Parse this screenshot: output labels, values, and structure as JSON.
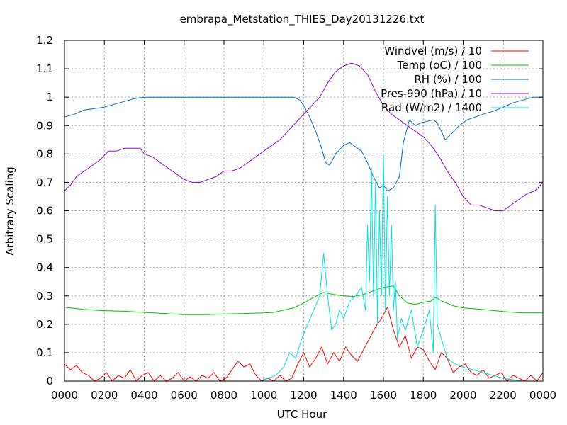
{
  "chart_data": {
    "type": "line",
    "title": "embrapa_Metstation_THIES_Day20131226.txt",
    "xlabel": "UTC Hour",
    "ylabel": "Arbitrary Scaling",
    "xlim": [
      0,
      24
    ],
    "ylim": [
      0,
      1.2
    ],
    "grid": true,
    "legend_position": "top-right",
    "x_tick_labels": [
      "0000",
      "0200",
      "0400",
      "0600",
      "0800",
      "1000",
      "1200",
      "1400",
      "1600",
      "1800",
      "2000",
      "2200",
      "0000"
    ],
    "y_tick_labels": [
      "0",
      "0.1",
      "0.2",
      "0.3",
      "0.4",
      "0.5",
      "0.6",
      "0.7",
      "0.8",
      "0.9",
      "1",
      "1.1",
      "1.2"
    ],
    "series": [
      {
        "name": "Windvel (m/s) / 10",
        "color": "#ff0000",
        "x": [
          0,
          0.3,
          0.6,
          0.9,
          1.2,
          1.5,
          1.8,
          2.1,
          2.4,
          2.7,
          3.0,
          3.3,
          3.6,
          3.9,
          4.2,
          4.5,
          4.8,
          5.1,
          5.4,
          5.7,
          6.0,
          6.3,
          6.6,
          6.9,
          7.2,
          7.5,
          7.8,
          8.1,
          8.4,
          8.7,
          9.0,
          9.3,
          9.6,
          9.9,
          10.2,
          10.5,
          10.8,
          11.1,
          11.4,
          11.7,
          12.0,
          12.3,
          12.6,
          12.9,
          13.2,
          13.5,
          13.8,
          14.1,
          14.4,
          14.7,
          15.0,
          15.3,
          15.6,
          15.9,
          16.2,
          16.5,
          16.8,
          17.1,
          17.4,
          17.7,
          18.0,
          18.3,
          18.6,
          18.9,
          19.2,
          19.5,
          19.8,
          20.1,
          20.4,
          20.7,
          21.0,
          21.3,
          21.6,
          21.9,
          22.2,
          22.5,
          22.8,
          23.1,
          23.4,
          23.7,
          24.0
        ],
        "y": [
          0.06,
          0.04,
          0.055,
          0.03,
          0.02,
          0.0,
          0.01,
          0.03,
          0.0,
          0.02,
          0.01,
          0.04,
          0.0,
          0.02,
          0.03,
          0.0,
          0.02,
          0.0,
          0.01,
          0.03,
          0.0,
          0.015,
          0.0,
          0.02,
          0.01,
          0.03,
          0.0,
          0.01,
          0.04,
          0.07,
          0.05,
          0.06,
          0.02,
          0.0,
          0.01,
          0.0,
          0.02,
          0.0,
          0.01,
          0.06,
          0.1,
          0.05,
          0.08,
          0.12,
          0.06,
          0.1,
          0.07,
          0.12,
          0.09,
          0.07,
          0.11,
          0.15,
          0.19,
          0.22,
          0.26,
          0.18,
          0.12,
          0.16,
          0.08,
          0.12,
          0.11,
          0.07,
          0.04,
          0.1,
          0.08,
          0.03,
          0.05,
          0.06,
          0.03,
          0.02,
          0.04,
          0.01,
          0.02,
          0.03,
          0.0,
          0.02,
          0.01,
          0.0,
          0.02,
          0.0,
          0.03
        ]
      },
      {
        "name": "Temp (oC) / 100",
        "color": "#00c000",
        "x": [
          0,
          1,
          2,
          3,
          4,
          5,
          6,
          7,
          8,
          9,
          10,
          10.5,
          11,
          11.5,
          12,
          12.5,
          13,
          13.5,
          14,
          14.5,
          15,
          15.5,
          16,
          16.5,
          16.8,
          17.2,
          17.6,
          18,
          18.4,
          18.6,
          19,
          19.5,
          20,
          21,
          22,
          23,
          24
        ],
        "y": [
          0.26,
          0.252,
          0.248,
          0.246,
          0.242,
          0.238,
          0.234,
          0.234,
          0.236,
          0.238,
          0.24,
          0.242,
          0.25,
          0.258,
          0.275,
          0.295,
          0.312,
          0.305,
          0.3,
          0.298,
          0.305,
          0.318,
          0.33,
          0.335,
          0.3,
          0.275,
          0.27,
          0.278,
          0.282,
          0.295,
          0.28,
          0.265,
          0.258,
          0.252,
          0.245,
          0.24,
          0.24
        ]
      },
      {
        "name": "RH (%) / 100",
        "color": "#0066cc",
        "x": [
          0,
          0.5,
          1,
          1.5,
          2,
          2.5,
          3,
          3.5,
          4,
          5,
          6,
          7,
          8,
          9,
          10,
          11,
          11.5,
          11.8,
          12,
          12.3,
          12.6,
          12.9,
          13.1,
          13.3,
          13.6,
          14,
          14.3,
          14.6,
          14.9,
          15.2,
          15.5,
          15.8,
          16,
          16.2,
          16.5,
          16.8,
          17,
          17.3,
          17.6,
          17.9,
          18.2,
          18.5,
          18.7,
          18.9,
          19.1,
          19.4,
          19.8,
          20.2,
          20.6,
          21,
          21.5,
          22,
          22.5,
          23,
          23.5,
          24
        ],
        "y": [
          0.93,
          0.94,
          0.955,
          0.96,
          0.965,
          0.975,
          0.985,
          0.995,
          1.0,
          1.0,
          1.0,
          1.0,
          1.0,
          1.0,
          1.0,
          1.0,
          1.0,
          0.99,
          0.97,
          0.93,
          0.88,
          0.82,
          0.77,
          0.76,
          0.8,
          0.83,
          0.84,
          0.825,
          0.81,
          0.77,
          0.72,
          0.68,
          0.69,
          0.67,
          0.68,
          0.72,
          0.84,
          0.92,
          0.9,
          0.91,
          0.915,
          0.92,
          0.91,
          0.88,
          0.85,
          0.87,
          0.9,
          0.92,
          0.93,
          0.94,
          0.95,
          0.965,
          0.98,
          0.99,
          1.0,
          1.0
        ]
      },
      {
        "name": "Pres-990 (hPa) / 10",
        "color": "#9400d3",
        "x": [
          0,
          0.3,
          0.6,
          1,
          1.4,
          1.8,
          2.2,
          2.6,
          3,
          3.4,
          3.8,
          4,
          4.4,
          4.8,
          5.2,
          5.6,
          6,
          6.4,
          6.8,
          7.2,
          7.6,
          8,
          8.4,
          8.8,
          9.2,
          9.6,
          10,
          10.4,
          10.8,
          11.2,
          11.6,
          12,
          12.4,
          12.8,
          13.2,
          13.6,
          14,
          14.4,
          14.8,
          15.2,
          15.6,
          16,
          16.4,
          16.8,
          17.2,
          17.6,
          18,
          18.4,
          18.8,
          19.2,
          19.6,
          20,
          20.4,
          20.8,
          21.2,
          21.6,
          22,
          22.4,
          22.8,
          23.2,
          23.6,
          24
        ],
        "y": [
          0.67,
          0.69,
          0.72,
          0.74,
          0.76,
          0.78,
          0.81,
          0.81,
          0.82,
          0.82,
          0.82,
          0.8,
          0.79,
          0.77,
          0.75,
          0.73,
          0.71,
          0.7,
          0.7,
          0.71,
          0.72,
          0.74,
          0.74,
          0.75,
          0.77,
          0.79,
          0.81,
          0.83,
          0.85,
          0.88,
          0.91,
          0.94,
          0.97,
          1.0,
          1.05,
          1.09,
          1.11,
          1.12,
          1.11,
          1.08,
          1.02,
          0.97,
          0.94,
          0.92,
          0.9,
          0.88,
          0.86,
          0.83,
          0.79,
          0.74,
          0.7,
          0.65,
          0.62,
          0.62,
          0.61,
          0.6,
          0.6,
          0.62,
          0.64,
          0.66,
          0.67,
          0.7
        ]
      },
      {
        "name": "Rad (W/m2) / 1400",
        "color": "#00e0e0",
        "x": [
          0,
          9.8,
          10.2,
          10.6,
          11,
          11.3,
          11.6,
          11.9,
          12.2,
          12.5,
          12.8,
          13,
          13.2,
          13.4,
          13.6,
          13.8,
          14,
          14.3,
          14.6,
          14.9,
          15.1,
          15.2,
          15.3,
          15.4,
          15.5,
          15.6,
          15.7,
          15.8,
          15.9,
          16,
          16.1,
          16.2,
          16.3,
          16.4,
          16.5,
          16.6,
          16.7,
          16.9,
          17.1,
          17.4,
          17.7,
          18,
          18.3,
          18.5,
          18.6,
          18.7,
          18.9,
          19.2,
          19.6,
          20,
          20.5,
          21,
          21.5,
          22,
          22.5,
          23,
          23.5,
          24
        ],
        "y": [
          0.0,
          0.0,
          0.01,
          0.02,
          0.05,
          0.1,
          0.08,
          0.15,
          0.2,
          0.25,
          0.3,
          0.45,
          0.3,
          0.18,
          0.2,
          0.25,
          0.22,
          0.28,
          0.3,
          0.33,
          0.25,
          0.55,
          0.35,
          0.75,
          0.3,
          0.7,
          0.2,
          0.6,
          0.3,
          0.8,
          0.25,
          0.65,
          0.3,
          0.55,
          0.25,
          0.35,
          0.15,
          0.22,
          0.18,
          0.25,
          0.12,
          0.18,
          0.25,
          0.1,
          0.62,
          0.2,
          0.15,
          0.08,
          0.06,
          0.05,
          0.04,
          0.03,
          0.02,
          0.01,
          0.005,
          0.0,
          0.0,
          0.0
        ]
      }
    ]
  }
}
